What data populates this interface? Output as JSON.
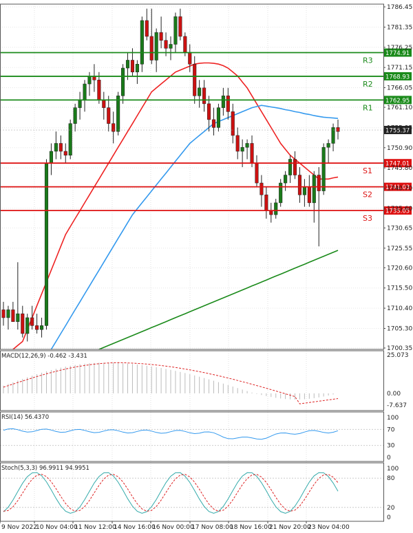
{
  "chart_data": {
    "type": "candlestick",
    "price_axis": {
      "ticks": [
        "1786.45",
        "1781.35",
        "1776.25",
        "1771.15",
        "1766.05",
        "1761.10",
        "1755.95",
        "1750.90",
        "1745.80",
        "1740.70",
        "1735.60",
        "1730.65",
        "1725.55",
        "1720.60",
        "1715.50",
        "1710.40",
        "1705.30",
        "1700.35"
      ],
      "ylim": [
        1700.35,
        1786.45
      ]
    },
    "time_axis": [
      "9 Nov 2022",
      "10 Nov 04:00",
      "11 Nov 12:00",
      "14 Nov 16:00",
      "16 Nov 00:00",
      "17 Nov 08:00",
      "18 Nov 16:00",
      "21 Nov 20:00",
      "23 Nov 04:00"
    ],
    "levels": [
      {
        "name": "R3",
        "value": "1774.91",
        "color": "#1a8a1a"
      },
      {
        "name": "R2",
        "value": "1768.93",
        "color": "#1a8a1a"
      },
      {
        "name": "R1",
        "value": "1762.95",
        "color": "#1a8a1a"
      },
      {
        "name": "S1",
        "value": "1747.01",
        "color": "#dd1111"
      },
      {
        "name": "S2",
        "value": "1741.03",
        "color": "#dd1111"
      },
      {
        "name": "S3",
        "value": "1735.05",
        "color": "#dd1111"
      }
    ],
    "last_price": "1755.37",
    "candles": [
      [
        1710,
        1712,
        1706,
        1708
      ],
      [
        1708,
        1711,
        1705,
        1710
      ],
      [
        1710,
        1712,
        1707,
        1707
      ],
      [
        1707,
        1722,
        1705,
        1709
      ],
      [
        1709,
        1711,
        1703,
        1704
      ],
      [
        1704,
        1709,
        1702,
        1708
      ],
      [
        1708,
        1711,
        1705,
        1706
      ],
      [
        1706,
        1709,
        1704,
        1705
      ],
      [
        1705,
        1708,
        1703,
        1706
      ],
      [
        1706,
        1748,
        1705,
        1747
      ],
      [
        1747,
        1752,
        1744,
        1750
      ],
      [
        1750,
        1755,
        1748,
        1752
      ],
      [
        1752,
        1754,
        1748,
        1750
      ],
      [
        1750,
        1752,
        1747,
        1749
      ],
      [
        1749,
        1758,
        1748,
        1757
      ],
      [
        1757,
        1762,
        1755,
        1761
      ],
      [
        1761,
        1765,
        1758,
        1763
      ],
      [
        1763,
        1768,
        1760,
        1767
      ],
      [
        1767,
        1770,
        1764,
        1769
      ],
      [
        1769,
        1772,
        1765,
        1768
      ],
      [
        1768,
        1770,
        1762,
        1763
      ],
      [
        1763,
        1765,
        1758,
        1761
      ],
      [
        1761,
        1764,
        1755,
        1757
      ],
      [
        1757,
        1760,
        1752,
        1755
      ],
      [
        1755,
        1765,
        1754,
        1764
      ],
      [
        1764,
        1772,
        1762,
        1771
      ],
      [
        1771,
        1775,
        1768,
        1773
      ],
      [
        1773,
        1776,
        1769,
        1770
      ],
      [
        1770,
        1773,
        1767,
        1772
      ],
      [
        1772,
        1784,
        1770,
        1783
      ],
      [
        1783,
        1786,
        1778,
        1779
      ],
      [
        1779,
        1786,
        1772,
        1773
      ],
      [
        1773,
        1781,
        1770,
        1780
      ],
      [
        1780,
        1784,
        1776,
        1778
      ],
      [
        1778,
        1780,
        1774,
        1776
      ],
      [
        1776,
        1779,
        1773,
        1777
      ],
      [
        1777,
        1785,
        1775,
        1784
      ],
      [
        1784,
        1786,
        1778,
        1779
      ],
      [
        1779,
        1780,
        1774,
        1775
      ],
      [
        1775,
        1777,
        1770,
        1772
      ],
      [
        1772,
        1774,
        1762,
        1764
      ],
      [
        1764,
        1768,
        1761,
        1766
      ],
      [
        1766,
        1768,
        1760,
        1762
      ],
      [
        1762,
        1764,
        1755,
        1758
      ],
      [
        1758,
        1761,
        1754,
        1756
      ],
      [
        1756,
        1762,
        1755,
        1761
      ],
      [
        1761,
        1766,
        1759,
        1764
      ],
      [
        1764,
        1766,
        1758,
        1760
      ],
      [
        1760,
        1762,
        1752,
        1754
      ],
      [
        1754,
        1756,
        1748,
        1750
      ],
      [
        1750,
        1753,
        1746,
        1751
      ],
      [
        1751,
        1753,
        1748,
        1752
      ],
      [
        1752,
        1754,
        1746,
        1747
      ],
      [
        1747,
        1749,
        1741,
        1742
      ],
      [
        1742,
        1744,
        1736,
        1739
      ],
      [
        1739,
        1741,
        1733,
        1735
      ],
      [
        1735,
        1737,
        1732,
        1734
      ],
      [
        1734,
        1738,
        1733,
        1737
      ],
      [
        1737,
        1743,
        1736,
        1742
      ],
      [
        1742,
        1745,
        1740,
        1744
      ],
      [
        1744,
        1749,
        1742,
        1748
      ],
      [
        1748,
        1750,
        1743,
        1744
      ],
      [
        1744,
        1746,
        1737,
        1739
      ],
      [
        1739,
        1743,
        1736,
        1741
      ],
      [
        1741,
        1744,
        1736,
        1737
      ],
      [
        1737,
        1745,
        1732,
        1744
      ],
      [
        1744,
        1746,
        1726,
        1740
      ],
      [
        1740,
        1752,
        1739,
        1751
      ],
      [
        1751,
        1753,
        1747,
        1752
      ],
      [
        1752,
        1757,
        1750,
        1756
      ],
      [
        1756,
        1758,
        1753,
        1755
      ]
    ],
    "ma_red": [
      1698,
      1699,
      1700,
      1701,
      1702,
      1705,
      1708,
      1711,
      1714,
      1717,
      1720,
      1723,
      1726,
      1729,
      1731,
      1733,
      1735,
      1737,
      1739,
      1741,
      1743,
      1745,
      1747,
      1749,
      1751,
      1753,
      1755,
      1757,
      1759,
      1761,
      1763,
      1765,
      1766,
      1767,
      1768,
      1769,
      1770,
      1770.5,
      1771,
      1771.5,
      1772,
      1772.2,
      1772.3,
      1772.3,
      1772.2,
      1772,
      1771.6,
      1771,
      1770,
      1769,
      1767.5,
      1766,
      1764,
      1762,
      1760,
      1758,
      1756,
      1754,
      1752,
      1750.5,
      1749,
      1748,
      1747,
      1746,
      1745,
      1744,
      1743,
      1743,
      1743,
      1743.3,
      1743.5
    ],
    "ma_blue": [
      1680,
      1682,
      1684,
      1686,
      1688,
      1690,
      1692,
      1694,
      1696,
      1698,
      1700,
      1702,
      1704,
      1706,
      1708,
      1710,
      1712,
      1714,
      1716,
      1718,
      1720,
      1722,
      1724,
      1726,
      1728,
      1730,
      1732,
      1734,
      1735.5,
      1737,
      1738.5,
      1740,
      1741.5,
      1743,
      1744.5,
      1746,
      1747.5,
      1749,
      1750.5,
      1752,
      1753,
      1754,
      1755,
      1756,
      1757,
      1757.5,
      1758,
      1758.5,
      1759,
      1759.5,
      1760,
      1760.5,
      1761,
      1761.3,
      1761.6,
      1761.4,
      1761.2,
      1761,
      1760.8,
      1760.5,
      1760.3,
      1760,
      1759.8,
      1759.5,
      1759.3,
      1759,
      1758.8,
      1758.6,
      1758.5,
      1758.4,
      1758.3
    ],
    "ma_green": [
      1690,
      1690.5,
      1691,
      1691.5,
      1692,
      1692.5,
      1693,
      1693.5,
      1694,
      1694.5,
      1695,
      1695.5,
      1696,
      1696.5,
      1697,
      1697.5,
      1698,
      1698.5,
      1699,
      1699.5,
      1700,
      1700.5,
      1701,
      1701.5,
      1702,
      1702.5,
      1703,
      1703.5,
      1704,
      1704.5,
      1705,
      1705.5,
      1706,
      1706.5,
      1707,
      1707.5,
      1708,
      1708.5,
      1709,
      1709.5,
      1710,
      1710.5,
      1711,
      1711.5,
      1712,
      1712.5,
      1713,
      1713.5,
      1714,
      1714.5,
      1715,
      1715.5,
      1716,
      1716.5,
      1717,
      1717.5,
      1718,
      1718.5,
      1719,
      1719.5,
      1720,
      1720.5,
      1721,
      1721.5,
      1722,
      1722.5,
      1723,
      1723.5,
      1724,
      1724.5,
      1725
    ],
    "macd": {
      "title": "MACD(12,26,9) -0.462 -3.431",
      "ticks": [
        "25.073",
        "0.00",
        "-7.637"
      ],
      "ylim": [
        -7.637,
        25.073
      ]
    },
    "rsi": {
      "title": "RSI(14) 56.4370",
      "ticks": [
        "100",
        "70",
        "30",
        "0"
      ],
      "ylim": [
        0,
        100
      ]
    },
    "stoch": {
      "title": "Stoch(5,3,3) 96.9911 94.9951",
      "ticks": [
        "100",
        "80",
        "20",
        "0"
      ],
      "ylim": [
        0,
        100
      ]
    },
    "colors": {
      "up": "#1a7a1a",
      "down": "#cc1111",
      "ma_red": "#ee2222",
      "ma_blue": "#3399ee",
      "ma_green": "#1a8a1a",
      "level_green": "#1a8a1a",
      "level_red": "#dd1111",
      "macd_signal": "#dd2222",
      "rsi": "#3399ee",
      "stoch_k": "#33aaaa",
      "stoch_d": "#dd2222"
    }
  }
}
